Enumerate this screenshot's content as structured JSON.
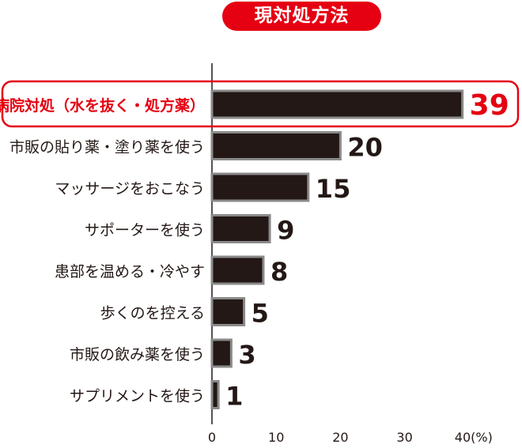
{
  "chart_data": {
    "type": "bar",
    "orientation": "horizontal",
    "title": "現対処方法",
    "categories": [
      "病院対処（水を抜く・処方薬）",
      "市販の貼り薬・塗り薬を使う",
      "マッサージをおこなう",
      "サポーターを使う",
      "患部を温める・冷やす",
      "歩くのを控える",
      "市販の飲み薬を使う",
      "サプリメントを使う"
    ],
    "values": [
      39,
      20,
      15,
      9,
      8,
      5,
      3,
      1
    ],
    "value_labels": [
      "39",
      "20",
      "15",
      "9",
      "8",
      "5",
      "3",
      "1"
    ],
    "highlight_index": 0,
    "xlim": [
      0,
      40
    ],
    "x_ticks": [
      {
        "value": 0,
        "label": "0"
      },
      {
        "value": 10,
        "label": "10"
      },
      {
        "value": 20,
        "label": "20"
      },
      {
        "value": 30,
        "label": "30"
      },
      {
        "value": 40,
        "label": "40(%)"
      }
    ],
    "xlabel": "",
    "ylabel": "",
    "grid": false,
    "colors": {
      "bar": "#231815",
      "bar_edge": "#8a8a8a",
      "highlight": "#e50012",
      "text": "#231815",
      "axis": "#231815",
      "background": "#ffffff"
    }
  }
}
